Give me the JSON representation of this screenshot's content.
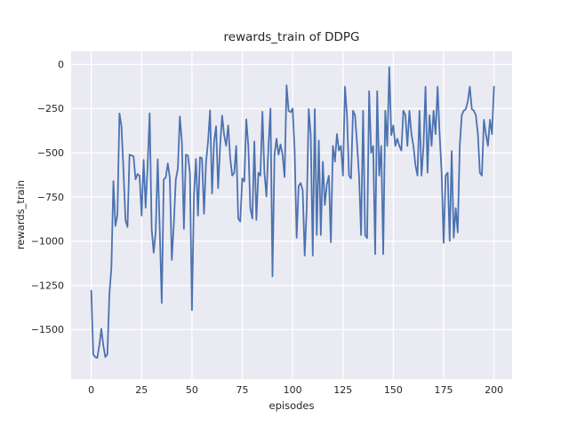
{
  "chart_data": {
    "type": "line",
    "title": "rewards_train of DDPG",
    "xlabel": "episodes",
    "ylabel": "rewards_train",
    "legend": "none",
    "grid": "on-white",
    "plot_bg_color": "#eaeaf2",
    "figure_bg_color": "#ffffff",
    "text_color": "#262626",
    "x_ticks": {
      "values": [
        0,
        25,
        50,
        75,
        100,
        125,
        150,
        175,
        200
      ],
      "labels": [
        "0",
        "25",
        "50",
        "75",
        "100",
        "125",
        "150",
        "175",
        "200"
      ]
    },
    "y_ticks": {
      "values": [
        0,
        -250,
        -500,
        -750,
        -1000,
        -1250,
        -1500
      ],
      "labels": [
        "0",
        "−250",
        "−500",
        "−750",
        "−1000",
        "−1250",
        "−1500"
      ]
    },
    "xlim": [
      0,
      200
    ],
    "ylim_data_approx": [
      -1660,
      -15
    ],
    "series": [
      {
        "name": "rewards_train",
        "color": "#4c72b0",
        "x_mode": "episode-index-0-to-200",
        "values": [
          -1280,
          -1640,
          -1655,
          -1660,
          -1590,
          -1495,
          -1590,
          -1655,
          -1640,
          -1300,
          -1150,
          -660,
          -914,
          -850,
          -277,
          -350,
          -600,
          -880,
          -920,
          -510,
          -515,
          -520,
          -650,
          -620,
          -630,
          -855,
          -540,
          -810,
          -570,
          -277,
          -930,
          -1065,
          -947,
          -537,
          -930,
          -1350,
          -650,
          -640,
          -560,
          -640,
          -1106,
          -900,
          -650,
          -590,
          -294,
          -440,
          -930,
          -510,
          -515,
          -615,
          -1390,
          -740,
          -535,
          -855,
          -525,
          -530,
          -845,
          -553,
          -436,
          -260,
          -730,
          -436,
          -350,
          -700,
          -461,
          -290,
          -400,
          -460,
          -345,
          -530,
          -629,
          -613,
          -461,
          -872,
          -889,
          -645,
          -662,
          -311,
          -461,
          -813,
          -872,
          -436,
          -880,
          -613,
          -629,
          -268,
          -613,
          -747,
          -461,
          -250,
          -1199,
          -511,
          -420,
          -511,
          -453,
          -511,
          -637,
          -118,
          -262,
          -270,
          -250,
          -486,
          -980,
          -688,
          -671,
          -713,
          -1081,
          -813,
          -253,
          -400,
          -1081,
          -253,
          -965,
          -430,
          -965,
          -550,
          -795,
          -679,
          -630,
          -1006,
          -461,
          -550,
          -394,
          -487,
          -461,
          -629,
          -126,
          -287,
          -629,
          -645,
          -262,
          -287,
          -450,
          -629,
          -965,
          -262,
          -965,
          -982,
          -151,
          -500,
          -461,
          -1073,
          -151,
          -629,
          -461,
          -1073,
          -262,
          -461,
          -15,
          -400,
          -345,
          -461,
          -420,
          -461,
          -487,
          -262,
          -287,
          -461,
          -262,
          -394,
          -461,
          -570,
          -629,
          -262,
          -629,
          -461,
          -126,
          -613,
          -287,
          -461,
          -262,
          -394,
          -126,
          -394,
          -613,
          -1010,
          -629,
          -613,
          -998,
          -490,
          -980,
          -813,
          -950,
          -461,
          -287,
          -262,
          -253,
          -210,
          -126,
          -253,
          -262,
          -287,
          -394,
          -613,
          -629,
          -313,
          -394,
          -461,
          -313,
          -394,
          -126
        ]
      }
    ],
    "layout": {
      "axes_rect": [
        80,
        57.6,
        496,
        369.6
      ],
      "xlim_display": [
        -10,
        209
      ],
      "ylim_display": [
        -1780,
        75
      ],
      "line_width": 1.8,
      "grid_line_width": 1.3,
      "tick_font_size": 11
    }
  }
}
